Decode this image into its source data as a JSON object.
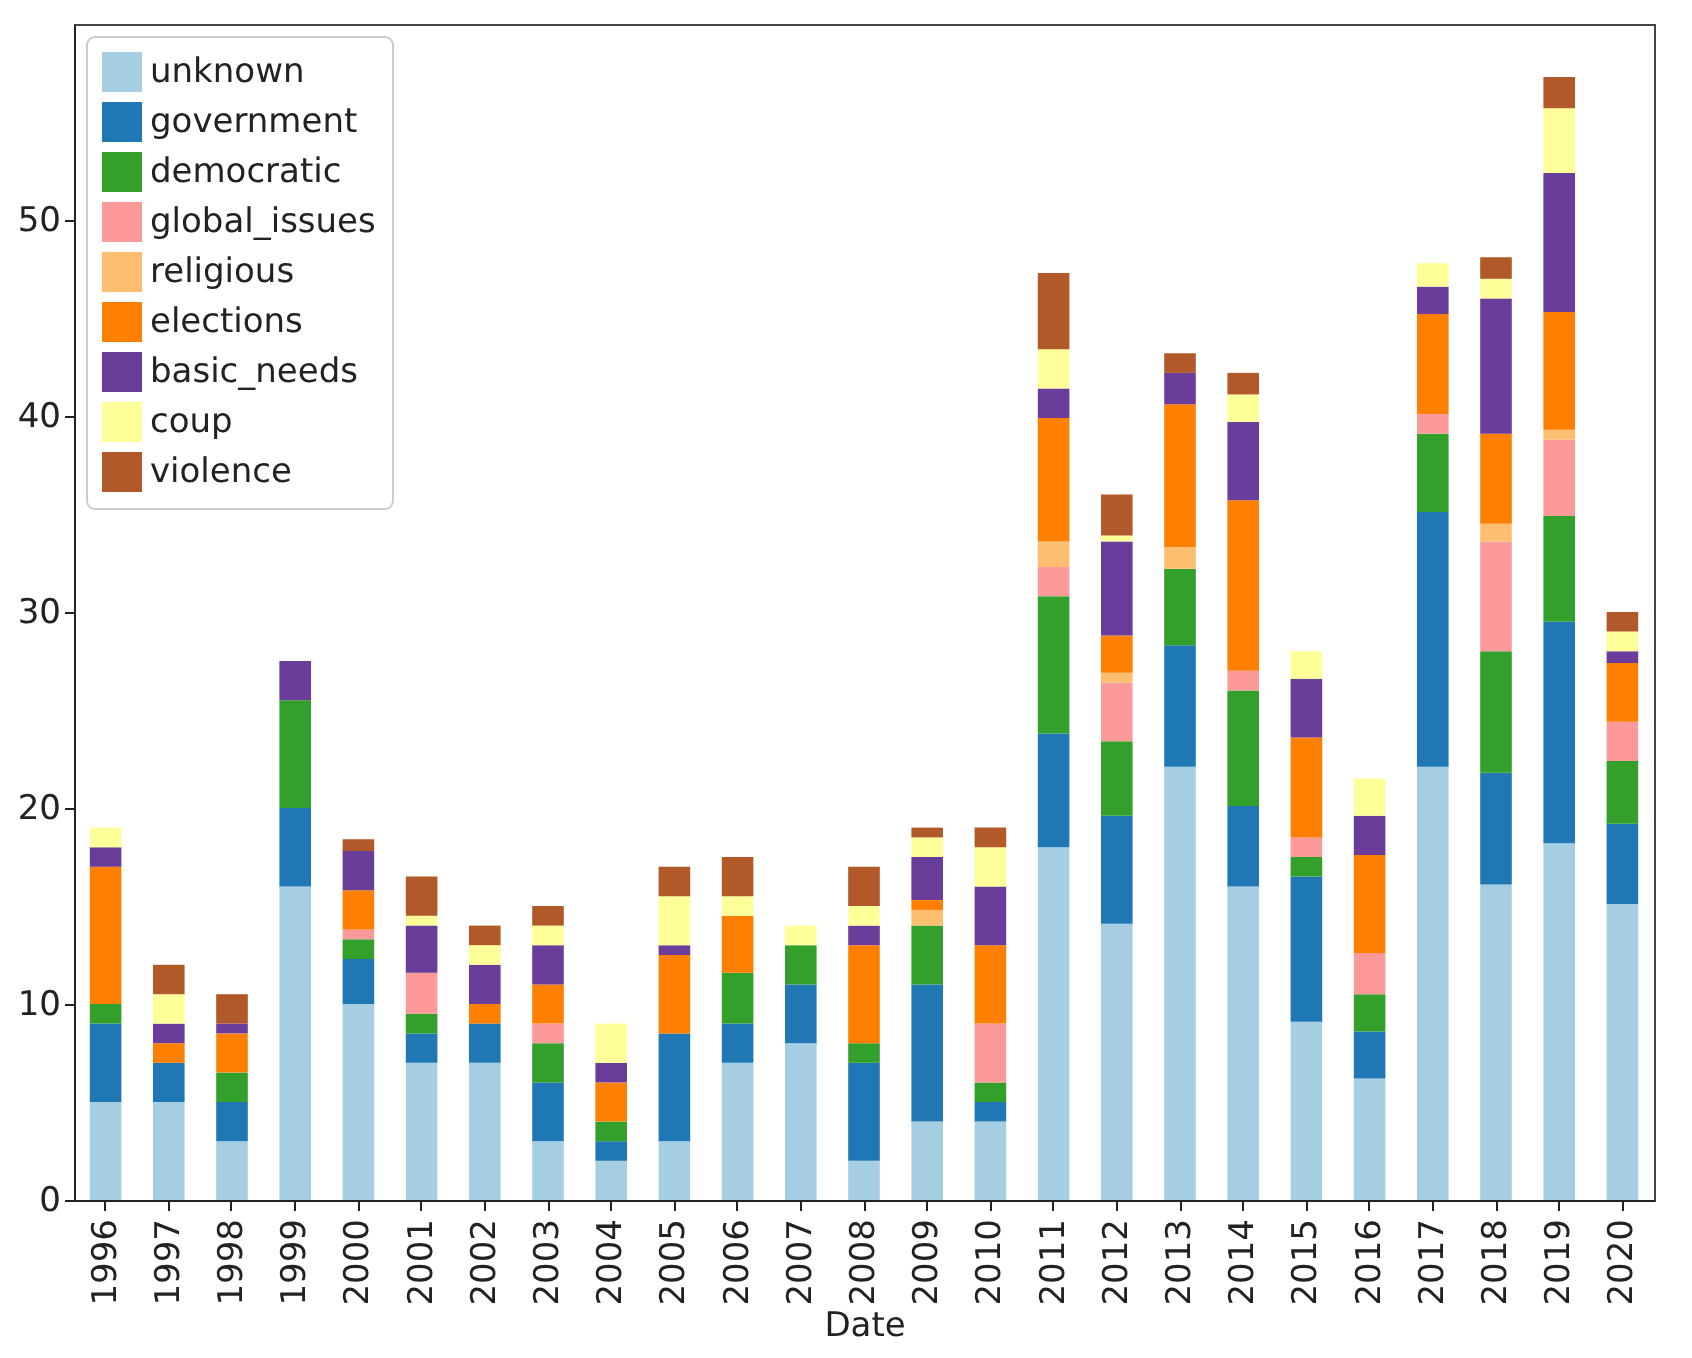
{
  "chart_data": {
    "type": "bar",
    "stacked": true,
    "xlabel": "Date",
    "categories": [
      "1996",
      "1997",
      "1998",
      "1999",
      "2000",
      "2001",
      "2002",
      "2003",
      "2004",
      "2005",
      "2006",
      "2007",
      "2008",
      "2009",
      "2010",
      "2011",
      "2012",
      "2013",
      "2014",
      "2015",
      "2016",
      "2017",
      "2018",
      "2019",
      "2020"
    ],
    "series": [
      {
        "name": "unknown",
        "color": "#a6cee3",
        "values": [
          5,
          5,
          3,
          16,
          10,
          7,
          7,
          3,
          2,
          3,
          7,
          8,
          2,
          4,
          4,
          18,
          14.1,
          22.1,
          16,
          9.1,
          6.2,
          22.1,
          16.1,
          18.2,
          15.1
        ]
      },
      {
        "name": "government",
        "color": "#1f78b4",
        "values": [
          4,
          2,
          2,
          4,
          2.3,
          1.5,
          2,
          3,
          1,
          5.5,
          2,
          3,
          5,
          7,
          1,
          5.8,
          5.5,
          6.2,
          4.1,
          7.4,
          2.4,
          13,
          5.7,
          11.3,
          4.1
        ]
      },
      {
        "name": "democratic",
        "color": "#33a02c",
        "values": [
          1,
          0,
          1.5,
          5.5,
          1,
          1,
          0,
          2,
          1,
          0,
          2.6,
          2,
          1,
          3,
          1,
          7,
          3.8,
          3.9,
          5.9,
          1,
          1.9,
          4,
          6.2,
          5.4,
          3.2
        ]
      },
      {
        "name": "global_issues",
        "color": "#fb9a99",
        "values": [
          0,
          0,
          0,
          0,
          0.5,
          2.1,
          0,
          1,
          0,
          0,
          0,
          0,
          0,
          0,
          3,
          1.5,
          3,
          0,
          1,
          1,
          2.1,
          1,
          5.6,
          3.9,
          2
        ]
      },
      {
        "name": "religious",
        "color": "#fdbf6f",
        "values": [
          0,
          0,
          0,
          0,
          0,
          0,
          0,
          0,
          0,
          0,
          0,
          0,
          0,
          0.8,
          0,
          1.3,
          0.5,
          1.1,
          0,
          0,
          0,
          0,
          0.9,
          0.5,
          0
        ]
      },
      {
        "name": "elections",
        "color": "#ff7f00",
        "values": [
          7,
          1,
          2,
          0,
          2,
          0,
          1,
          2,
          2,
          4,
          2.9,
          0,
          5,
          0.5,
          4,
          6.3,
          1.9,
          7.3,
          8.7,
          5.1,
          5,
          5.1,
          4.6,
          6,
          3
        ]
      },
      {
        "name": "basic_needs",
        "color": "#6a3d9a",
        "values": [
          1,
          1,
          0.5,
          2,
          2,
          2.4,
          2,
          2,
          1,
          0.5,
          0,
          0,
          1,
          2.2,
          3,
          1.5,
          4.8,
          1.6,
          4,
          3,
          2,
          1.4,
          6.9,
          7.1,
          0.6
        ]
      },
      {
        "name": "coup",
        "color": "#ffff99",
        "values": [
          1,
          1.5,
          0,
          0,
          0,
          0.5,
          1,
          1,
          2,
          2.5,
          1,
          1,
          1,
          1,
          2,
          2,
          0.3,
          0,
          1.4,
          1.4,
          1.9,
          1.2,
          1,
          3.3,
          1
        ]
      },
      {
        "name": "violence",
        "color": "#b15928",
        "values": [
          0,
          1.5,
          1.5,
          0,
          0.6,
          2,
          1,
          1,
          0,
          1.5,
          2,
          0,
          2,
          0.5,
          1,
          3.9,
          2.1,
          1,
          1.1,
          0,
          0,
          0,
          1.1,
          1.6,
          1
        ]
      }
    ],
    "ylim": [
      0,
      60
    ],
    "yticks": [
      0,
      10,
      20,
      30,
      40,
      50
    ],
    "grid": false,
    "legend": "top left"
  }
}
